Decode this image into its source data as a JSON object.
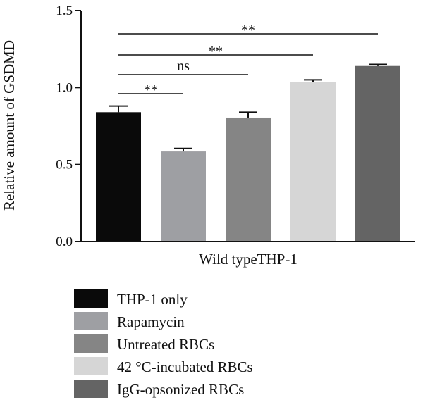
{
  "chart_data": {
    "type": "bar",
    "ylabel": "Relative amount of GSDMD",
    "xlabel": "Wild typeTHP-1",
    "ylim": [
      0,
      1.5
    ],
    "yticks": [
      "0.0",
      "0.5",
      "1.0",
      "1.5"
    ],
    "ytick_values": [
      0,
      0.5,
      1.0,
      1.5
    ],
    "grid": false,
    "legend_position": "bottom",
    "series": [
      {
        "name": "THP-1 only",
        "value": 0.84,
        "error": 0.04,
        "color": "#0a0a0a"
      },
      {
        "name": "Rapamycin",
        "value": 0.585,
        "error": 0.02,
        "color": "#9e9fa3"
      },
      {
        "name": "Untreated RBCs",
        "value": 0.805,
        "error": 0.035,
        "color": "#858585"
      },
      {
        "name": "42 °C-incubated RBCs",
        "value": 1.035,
        "error": 0.015,
        "color": "#d6d6d6"
      },
      {
        "name": "IgG-opsonized RBCs",
        "value": 1.14,
        "error": 0.01,
        "color": "#646464"
      }
    ],
    "comparisons": [
      {
        "from": 0,
        "to": 1,
        "label": "**"
      },
      {
        "from": 0,
        "to": 2,
        "label": "ns"
      },
      {
        "from": 0,
        "to": 3,
        "label": "**"
      },
      {
        "from": 0,
        "to": 4,
        "label": "**"
      }
    ]
  }
}
